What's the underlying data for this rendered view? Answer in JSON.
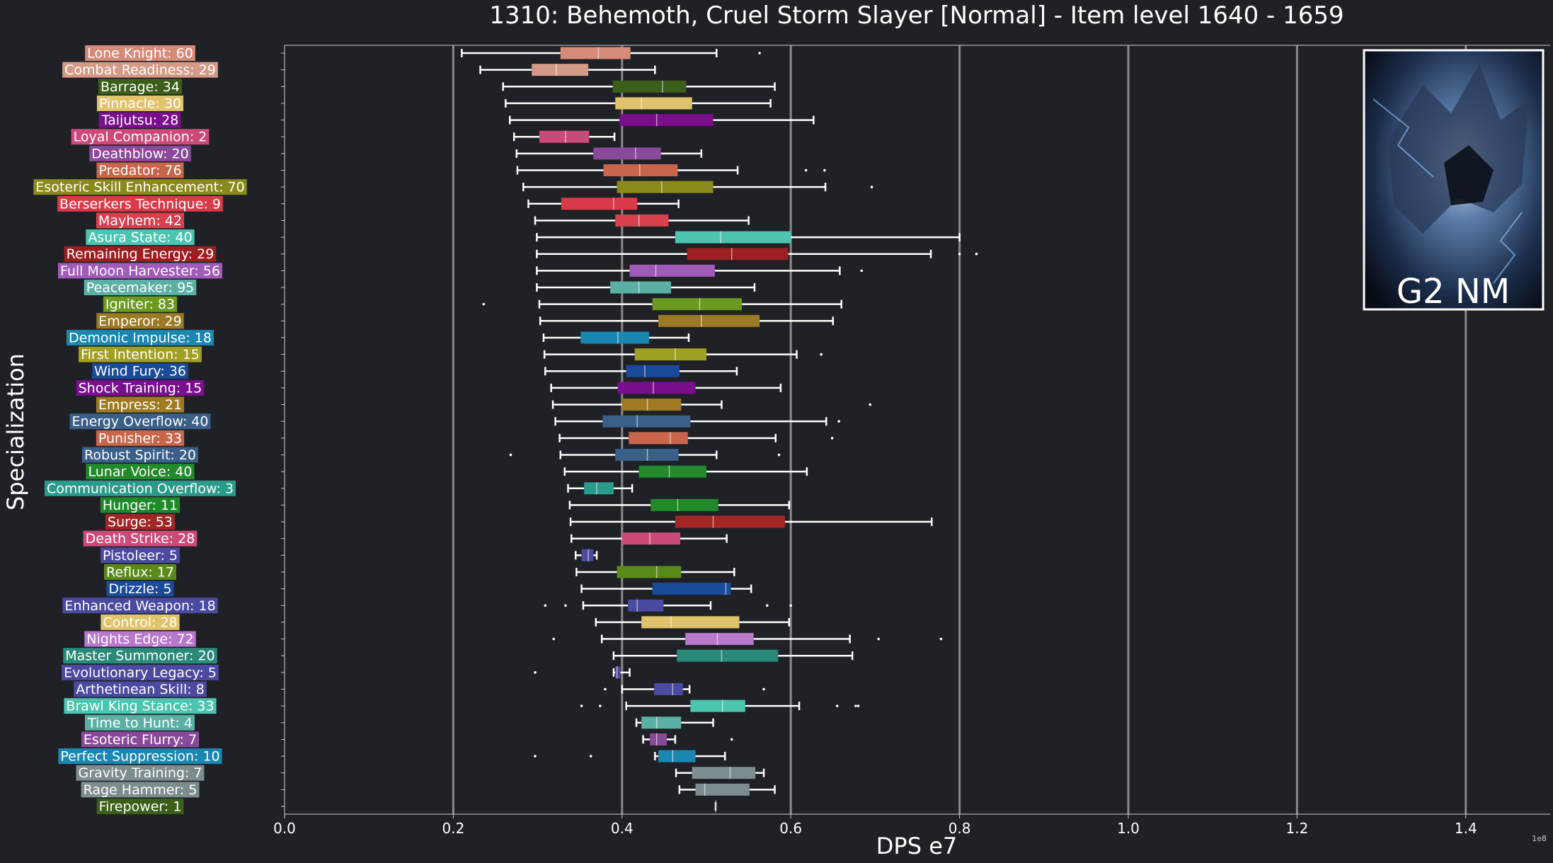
{
  "chart_data": {
    "type": "boxplot",
    "title": "1310: Behemoth, Cruel Storm Slayer [Normal] - Item level 1640 - 1659",
    "xlabel": "DPS e7",
    "ylabel": "Specialization",
    "offset_text": "1e8",
    "xlim": [
      0,
      1.5
    ],
    "xticks": [
      0.0,
      0.2,
      0.4,
      0.6,
      0.8,
      1.0,
      1.2,
      1.4
    ],
    "xtick_labels": [
      "0.0",
      "0.2",
      "0.4",
      "0.6",
      "0.8",
      "1.0",
      "1.2",
      "1.4"
    ],
    "grid": "vertical",
    "inset_label": "G2 NM",
    "series": [
      {
        "label": "Lone Knight: 60",
        "color": "#d58b78",
        "box": [
          0.21,
          0.327,
          0.372,
          0.41,
          0.512
        ],
        "outliers": [
          0.563
        ]
      },
      {
        "label": "Combat Readiness: 29",
        "color": "#d49a86",
        "box": [
          0.232,
          0.293,
          0.322,
          0.36,
          0.439
        ],
        "outliers": []
      },
      {
        "label": "Barrage: 34",
        "color": "#3b5e19",
        "box": [
          0.259,
          0.389,
          0.448,
          0.476,
          0.581
        ],
        "outliers": []
      },
      {
        "label": "Pinnacle: 30",
        "color": "#e0c36b",
        "box": [
          0.262,
          0.392,
          0.423,
          0.483,
          0.576
        ],
        "outliers": []
      },
      {
        "label": "Taijutsu: 28",
        "color": "#7a0f8c",
        "box": [
          0.267,
          0.397,
          0.441,
          0.508,
          0.627
        ],
        "outliers": []
      },
      {
        "label": "Loyal Companion: 2",
        "color": "#cc4a79",
        "box": [
          0.272,
          0.302,
          0.333,
          0.361,
          0.391
        ],
        "outliers": []
      },
      {
        "label": "Deathblow: 20",
        "color": "#8a4a9a",
        "box": [
          0.275,
          0.366,
          0.416,
          0.446,
          0.494
        ],
        "outliers": []
      },
      {
        "label": "Predator: 76",
        "color": "#c9654a",
        "box": [
          0.276,
          0.378,
          0.421,
          0.466,
          0.537
        ],
        "outliers": [
          0.618,
          0.64
        ]
      },
      {
        "label": "Esoteric Skill Enhancement: 70",
        "color": "#8a8a1b",
        "box": [
          0.283,
          0.394,
          0.447,
          0.508,
          0.641
        ],
        "outliers": [
          0.696
        ]
      },
      {
        "label": "Berserkers Technique: 9",
        "color": "#d93a4a",
        "box": [
          0.289,
          0.328,
          0.39,
          0.418,
          0.467
        ],
        "outliers": []
      },
      {
        "label": "Mayhem: 42",
        "color": "#d8404e",
        "box": [
          0.297,
          0.392,
          0.42,
          0.455,
          0.55
        ],
        "outliers": []
      },
      {
        "label": "Asura State: 40",
        "color": "#4cc5b0",
        "box": [
          0.299,
          0.463,
          0.517,
          0.6,
          0.8
        ],
        "outliers": []
      },
      {
        "label": "Remaining Energy: 29",
        "color": "#9a1f1f",
        "box": [
          0.299,
          0.477,
          0.53,
          0.597,
          0.766
        ],
        "outliers": [
          0.8,
          0.82
        ]
      },
      {
        "label": "Full Moon Harvester: 56",
        "color": "#a05ab8",
        "box": [
          0.299,
          0.409,
          0.44,
          0.51,
          0.658
        ],
        "outliers": [
          0.684
        ]
      },
      {
        "label": "Peacemaker: 95",
        "color": "#5bb0a4",
        "box": [
          0.299,
          0.386,
          0.42,
          0.458,
          0.557
        ],
        "outliers": []
      },
      {
        "label": "Igniter: 83",
        "color": "#6a9a1e",
        "box": [
          0.302,
          0.436,
          0.492,
          0.542,
          0.66
        ],
        "outliers": [
          0.236
        ]
      },
      {
        "label": "Emperor: 29",
        "color": "#9a7a22",
        "box": [
          0.303,
          0.443,
          0.494,
          0.563,
          0.65
        ],
        "outliers": []
      },
      {
        "label": "Demonic Impulse: 18",
        "color": "#1a87b0",
        "box": [
          0.307,
          0.351,
          0.395,
          0.432,
          0.479
        ],
        "outliers": []
      },
      {
        "label": "First Intention: 15",
        "color": "#a0a023",
        "box": [
          0.308,
          0.415,
          0.463,
          0.5,
          0.607
        ],
        "outliers": [
          0.636
        ]
      },
      {
        "label": "Wind Fury: 36",
        "color": "#1a4a9a",
        "box": [
          0.309,
          0.405,
          0.427,
          0.468,
          0.536
        ],
        "outliers": []
      },
      {
        "label": "Shock Training: 15",
        "color": "#7a0f8c",
        "box": [
          0.316,
          0.395,
          0.437,
          0.487,
          0.588
        ],
        "outliers": []
      },
      {
        "label": "Empress: 21",
        "color": "#a07a22",
        "box": [
          0.318,
          0.4,
          0.43,
          0.47,
          0.518
        ],
        "outliers": [
          0.694
        ]
      },
      {
        "label": "Energy Overflow: 40",
        "color": "#3a5f88",
        "box": [
          0.321,
          0.377,
          0.418,
          0.481,
          0.642
        ],
        "outliers": [
          0.657
        ]
      },
      {
        "label": "Punisher: 33",
        "color": "#c9654a",
        "box": [
          0.326,
          0.408,
          0.457,
          0.478,
          0.582
        ],
        "outliers": [
          0.649
        ]
      },
      {
        "label": "Robust Spirit: 20",
        "color": "#3a5f88",
        "box": [
          0.327,
          0.392,
          0.43,
          0.467,
          0.512
        ],
        "outliers": [
          0.268,
          0.586
        ]
      },
      {
        "label": "Lunar Voice: 40",
        "color": "#218a2a",
        "box": [
          0.332,
          0.42,
          0.456,
          0.5,
          0.619
        ],
        "outliers": []
      },
      {
        "label": "Communication Overflow: 3",
        "color": "#2a9a8a",
        "box": [
          0.336,
          0.355,
          0.37,
          0.39,
          0.412
        ],
        "outliers": []
      },
      {
        "label": "Hunger: 11",
        "color": "#1f8a2a",
        "box": [
          0.338,
          0.434,
          0.466,
          0.514,
          0.598
        ],
        "outliers": []
      },
      {
        "label": "Surge: 53",
        "color": "#a32626",
        "box": [
          0.339,
          0.463,
          0.508,
          0.593,
          0.767
        ],
        "outliers": []
      },
      {
        "label": "Death Strike: 28",
        "color": "#cc4a79",
        "box": [
          0.34,
          0.4,
          0.433,
          0.469,
          0.524
        ],
        "outliers": []
      },
      {
        "label": "Pistoleer: 5",
        "color": "#4a4aa0",
        "box": [
          0.345,
          0.352,
          0.36,
          0.366,
          0.37
        ],
        "outliers": []
      },
      {
        "label": "Reflux: 17",
        "color": "#5a8a1a",
        "box": [
          0.346,
          0.394,
          0.441,
          0.47,
          0.533
        ],
        "outliers": []
      },
      {
        "label": "Drizzle: 5",
        "color": "#1a4a9a",
        "box": [
          0.352,
          0.436,
          0.523,
          0.529,
          0.553
        ],
        "outliers": []
      },
      {
        "label": "Enhanced Weapon: 18",
        "color": "#4a4aa0",
        "box": [
          0.354,
          0.407,
          0.418,
          0.449,
          0.505
        ],
        "outliers": [
          0.309,
          0.333,
          0.572,
          0.6
        ]
      },
      {
        "label": "Control: 28",
        "color": "#e0c36b",
        "box": [
          0.369,
          0.423,
          0.458,
          0.539,
          0.598
        ],
        "outliers": []
      },
      {
        "label": "Nights Edge: 72",
        "color": "#b878cc",
        "box": [
          0.376,
          0.475,
          0.513,
          0.556,
          0.67
        ],
        "outliers": [
          0.319,
          0.704,
          0.778
        ]
      },
      {
        "label": "Master Summoner: 20",
        "color": "#2a8a7a",
        "box": [
          0.39,
          0.465,
          0.518,
          0.585,
          0.673
        ],
        "outliers": []
      },
      {
        "label": "Evolutionary Legacy: 5",
        "color": "#4a4aa0",
        "box": [
          0.39,
          0.392,
          0.394,
          0.398,
          0.409
        ],
        "outliers": [
          0.297
        ]
      },
      {
        "label": "Arthetinean Skill: 8",
        "color": "#4a4aa0",
        "box": [
          0.4,
          0.438,
          0.46,
          0.472,
          0.48
        ],
        "outliers": [
          0.38,
          0.568
        ]
      },
      {
        "label": "Brawl King Stance: 33",
        "color": "#4cc5b0",
        "box": [
          0.405,
          0.481,
          0.519,
          0.546,
          0.61
        ],
        "outliers": [
          0.352,
          0.374,
          0.655,
          0.677,
          0.68
        ]
      },
      {
        "label": "Time to Hunt: 4",
        "color": "#5bb0a4",
        "box": [
          0.417,
          0.423,
          0.441,
          0.47,
          0.508
        ],
        "outliers": []
      },
      {
        "label": "Esoteric Flurry: 7",
        "color": "#8a4a9a",
        "box": [
          0.425,
          0.433,
          0.441,
          0.453,
          0.463
        ],
        "outliers": [
          0.53
        ]
      },
      {
        "label": "Perfect Suppression: 10",
        "color": "#1a87b0",
        "box": [
          0.439,
          0.443,
          0.46,
          0.487,
          0.522
        ],
        "outliers": [
          0.297,
          0.363
        ]
      },
      {
        "label": "Gravity Training: 7",
        "color": "#7c8c8f",
        "box": [
          0.464,
          0.483,
          0.528,
          0.558,
          0.568
        ],
        "outliers": []
      },
      {
        "label": "Rage Hammer: 5",
        "color": "#7c8c8f",
        "box": [
          0.468,
          0.487,
          0.498,
          0.551,
          0.581
        ],
        "outliers": []
      },
      {
        "label": "Firepower: 1",
        "color": "#3b5e19",
        "box": [
          0.511,
          0.511,
          0.511,
          0.511,
          0.511
        ],
        "outliers": []
      }
    ]
  }
}
